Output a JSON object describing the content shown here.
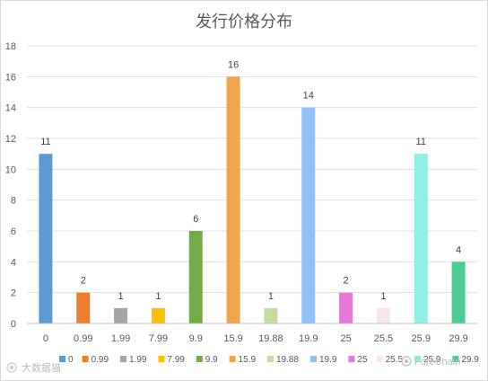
{
  "chart_data": {
    "type": "bar",
    "title": "发行价格分布",
    "xlabel": "",
    "ylabel": "",
    "categories": [
      "0",
      "0.99",
      "1.99",
      "7.99",
      "9.9",
      "15.9",
      "19.88",
      "19.9",
      "25",
      "25.5",
      "25.9",
      "29.9"
    ],
    "values": [
      11,
      2,
      1,
      1,
      6,
      16,
      1,
      14,
      2,
      1,
      11,
      4
    ],
    "colors": [
      "#5b9bd5",
      "#ed7d31",
      "#a5a5a5",
      "#ffc000",
      "#70ad47",
      "#f0a44e",
      "#c5dca0",
      "#8fc0f7",
      "#e67bd6",
      "#fbe6e6",
      "#8ff0e6",
      "#4dcc93"
    ],
    "ylim": [
      0,
      18
    ],
    "yticks": [
      0,
      2,
      4,
      6,
      8,
      10,
      12,
      14,
      16,
      18
    ],
    "grid": true,
    "legend": {
      "position": "bottom",
      "labels": [
        "0",
        "0.99",
        "1.99",
        "7.99",
        "9.9",
        "15.9",
        "19.88",
        "19.9",
        "25",
        "25.5",
        "25.9",
        "29.9"
      ]
    }
  },
  "watermarks": {
    "left": "大数据猫",
    "right": "ForeChain"
  }
}
